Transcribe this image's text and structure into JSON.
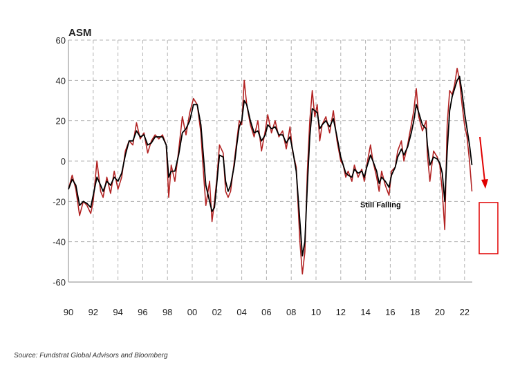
{
  "chart_data": {
    "type": "line",
    "title": "ASM",
    "xlabel": "",
    "ylabel": "",
    "x_tick_labels": [
      "90",
      "92",
      "94",
      "96",
      "98",
      "00",
      "02",
      "04",
      "06",
      "08",
      "10",
      "12",
      "14",
      "16",
      "18",
      "20",
      "22"
    ],
    "y_tick_labels": [
      "60",
      "40",
      "20",
      "0",
      "-20",
      "-40",
      "-60"
    ],
    "xlim": [
      1990,
      2022.9
    ],
    "ylim": [
      -60,
      60
    ],
    "grid": true,
    "annotation": "Still Falling",
    "series": [
      {
        "color": "#b22222",
        "points": [
          [
            1990.0,
            -14
          ],
          [
            1990.3,
            -7
          ],
          [
            1990.6,
            -14
          ],
          [
            1990.9,
            -27
          ],
          [
            1991.2,
            -20
          ],
          [
            1991.5,
            -22
          ],
          [
            1991.8,
            -26
          ],
          [
            1992.0,
            -20
          ],
          [
            1992.3,
            0
          ],
          [
            1992.6,
            -15
          ],
          [
            1992.8,
            -18
          ],
          [
            1993.1,
            -8
          ],
          [
            1993.4,
            -16
          ],
          [
            1993.7,
            -5
          ],
          [
            1994.0,
            -14
          ],
          [
            1994.3,
            -8
          ],
          [
            1994.6,
            5
          ],
          [
            1994.9,
            10
          ],
          [
            1995.2,
            8
          ],
          [
            1995.5,
            19
          ],
          [
            1995.8,
            11
          ],
          [
            1996.1,
            14
          ],
          [
            1996.4,
            4
          ],
          [
            1996.7,
            10
          ],
          [
            1997.0,
            13
          ],
          [
            1997.3,
            11
          ],
          [
            1997.6,
            13
          ],
          [
            1997.9,
            8
          ],
          [
            1998.1,
            -18
          ],
          [
            1998.3,
            -2
          ],
          [
            1998.6,
            -10
          ],
          [
            1998.9,
            5
          ],
          [
            1999.2,
            22
          ],
          [
            1999.5,
            13
          ],
          [
            1999.8,
            24
          ],
          [
            2000.1,
            31
          ],
          [
            2000.4,
            28
          ],
          [
            2000.7,
            14
          ],
          [
            2000.9,
            -5
          ],
          [
            2001.1,
            -22
          ],
          [
            2001.4,
            -10
          ],
          [
            2001.6,
            -30
          ],
          [
            2001.8,
            -20
          ],
          [
            2002.0,
            -8
          ],
          [
            2002.2,
            8
          ],
          [
            2002.5,
            4
          ],
          [
            2002.7,
            -15
          ],
          [
            2002.9,
            -18
          ],
          [
            2003.1,
            -15
          ],
          [
            2003.4,
            0
          ],
          [
            2003.6,
            10
          ],
          [
            2003.8,
            20
          ],
          [
            2004.0,
            18
          ],
          [
            2004.2,
            40
          ],
          [
            2004.4,
            28
          ],
          [
            2004.7,
            18
          ],
          [
            2005.0,
            12
          ],
          [
            2005.3,
            20
          ],
          [
            2005.6,
            5
          ],
          [
            2005.9,
            15
          ],
          [
            2006.1,
            23
          ],
          [
            2006.4,
            14
          ],
          [
            2006.7,
            20
          ],
          [
            2007.0,
            12
          ],
          [
            2007.3,
            15
          ],
          [
            2007.6,
            6
          ],
          [
            2007.9,
            17
          ],
          [
            2008.1,
            5
          ],
          [
            2008.4,
            -3
          ],
          [
            2008.7,
            -40
          ],
          [
            2008.9,
            -56
          ],
          [
            2009.1,
            -45
          ],
          [
            2009.3,
            -5
          ],
          [
            2009.5,
            20
          ],
          [
            2009.7,
            35
          ],
          [
            2009.9,
            22
          ],
          [
            2010.1,
            28
          ],
          [
            2010.3,
            10
          ],
          [
            2010.5,
            18
          ],
          [
            2010.8,
            22
          ],
          [
            2011.1,
            14
          ],
          [
            2011.4,
            25
          ],
          [
            2011.7,
            10
          ],
          [
            2012.0,
            0
          ],
          [
            2012.2,
            -2
          ],
          [
            2012.4,
            -8
          ],
          [
            2012.6,
            -5
          ],
          [
            2012.9,
            -10
          ],
          [
            2013.1,
            -2
          ],
          [
            2013.4,
            -8
          ],
          [
            2013.7,
            -4
          ],
          [
            2013.9,
            -10
          ],
          [
            2014.1,
            -2
          ],
          [
            2014.4,
            8
          ],
          [
            2014.6,
            0
          ],
          [
            2014.9,
            -8
          ],
          [
            2015.1,
            -15
          ],
          [
            2015.3,
            -5
          ],
          [
            2015.6,
            -12
          ],
          [
            2015.9,
            -17
          ],
          [
            2016.1,
            -5
          ],
          [
            2016.4,
            -3
          ],
          [
            2016.6,
            5
          ],
          [
            2016.9,
            10
          ],
          [
            2017.1,
            0
          ],
          [
            2017.4,
            8
          ],
          [
            2017.7,
            18
          ],
          [
            2017.9,
            25
          ],
          [
            2018.1,
            36
          ],
          [
            2018.3,
            22
          ],
          [
            2018.6,
            15
          ],
          [
            2018.9,
            20
          ],
          [
            2019.0,
            3
          ],
          [
            2019.2,
            -10
          ],
          [
            2019.5,
            5
          ],
          [
            2019.8,
            2
          ],
          [
            2020.0,
            -2
          ],
          [
            2020.2,
            -15
          ],
          [
            2020.4,
            -34
          ],
          [
            2020.6,
            18
          ],
          [
            2020.8,
            35
          ],
          [
            2021.0,
            33
          ],
          [
            2021.2,
            38
          ],
          [
            2021.4,
            46
          ],
          [
            2021.6,
            40
          ],
          [
            2021.8,
            28
          ],
          [
            2022.0,
            18
          ],
          [
            2022.2,
            12
          ],
          [
            2022.4,
            0
          ],
          [
            2022.6,
            -15
          ]
        ]
      },
      {
        "color": "#000000",
        "points": [
          [
            1990.0,
            -14
          ],
          [
            1990.3,
            -9
          ],
          [
            1990.6,
            -12
          ],
          [
            1990.9,
            -22
          ],
          [
            1991.2,
            -20
          ],
          [
            1991.5,
            -21
          ],
          [
            1991.8,
            -23
          ],
          [
            1992.0,
            -17
          ],
          [
            1992.3,
            -8
          ],
          [
            1992.6,
            -12
          ],
          [
            1992.8,
            -15
          ],
          [
            1993.1,
            -10
          ],
          [
            1993.4,
            -12
          ],
          [
            1993.7,
            -8
          ],
          [
            1994.0,
            -10
          ],
          [
            1994.3,
            -6
          ],
          [
            1994.6,
            3
          ],
          [
            1994.9,
            10
          ],
          [
            1995.2,
            10
          ],
          [
            1995.5,
            15
          ],
          [
            1995.8,
            12
          ],
          [
            1996.1,
            13
          ],
          [
            1996.4,
            8
          ],
          [
            1996.7,
            9
          ],
          [
            1997.0,
            12
          ],
          [
            1997.3,
            12
          ],
          [
            1997.6,
            12
          ],
          [
            1997.9,
            8
          ],
          [
            1998.1,
            -8
          ],
          [
            1998.3,
            -5
          ],
          [
            1998.6,
            -5
          ],
          [
            1998.9,
            3
          ],
          [
            1999.2,
            14
          ],
          [
            1999.5,
            16
          ],
          [
            1999.8,
            20
          ],
          [
            2000.1,
            28
          ],
          [
            2000.4,
            28
          ],
          [
            2000.7,
            18
          ],
          [
            2000.9,
            3
          ],
          [
            2001.1,
            -12
          ],
          [
            2001.4,
            -20
          ],
          [
            2001.6,
            -25
          ],
          [
            2001.8,
            -23
          ],
          [
            2002.0,
            -10
          ],
          [
            2002.2,
            3
          ],
          [
            2002.5,
            2
          ],
          [
            2002.7,
            -10
          ],
          [
            2002.9,
            -15
          ],
          [
            2003.1,
            -12
          ],
          [
            2003.4,
            -2
          ],
          [
            2003.6,
            8
          ],
          [
            2003.8,
            17
          ],
          [
            2004.0,
            20
          ],
          [
            2004.2,
            30
          ],
          [
            2004.4,
            28
          ],
          [
            2004.7,
            20
          ],
          [
            2005.0,
            14
          ],
          [
            2005.3,
            15
          ],
          [
            2005.6,
            10
          ],
          [
            2005.9,
            13
          ],
          [
            2006.1,
            18
          ],
          [
            2006.4,
            16
          ],
          [
            2006.7,
            17
          ],
          [
            2007.0,
            13
          ],
          [
            2007.3,
            13
          ],
          [
            2007.6,
            9
          ],
          [
            2007.9,
            12
          ],
          [
            2008.1,
            6
          ],
          [
            2008.4,
            -5
          ],
          [
            2008.7,
            -30
          ],
          [
            2008.9,
            -47
          ],
          [
            2009.1,
            -40
          ],
          [
            2009.3,
            -12
          ],
          [
            2009.5,
            12
          ],
          [
            2009.7,
            26
          ],
          [
            2009.9,
            25
          ],
          [
            2010.1,
            24
          ],
          [
            2010.3,
            16
          ],
          [
            2010.5,
            18
          ],
          [
            2010.8,
            20
          ],
          [
            2011.1,
            17
          ],
          [
            2011.4,
            21
          ],
          [
            2011.7,
            12
          ],
          [
            2012.0,
            2
          ],
          [
            2012.2,
            -2
          ],
          [
            2012.4,
            -6
          ],
          [
            2012.6,
            -7
          ],
          [
            2012.9,
            -8
          ],
          [
            2013.1,
            -4
          ],
          [
            2013.4,
            -6
          ],
          [
            2013.7,
            -5
          ],
          [
            2013.9,
            -8
          ],
          [
            2014.1,
            -3
          ],
          [
            2014.4,
            3
          ],
          [
            2014.6,
            0
          ],
          [
            2014.9,
            -5
          ],
          [
            2015.1,
            -11
          ],
          [
            2015.3,
            -8
          ],
          [
            2015.6,
            -10
          ],
          [
            2015.9,
            -13
          ],
          [
            2016.1,
            -7
          ],
          [
            2016.4,
            -3
          ],
          [
            2016.6,
            2
          ],
          [
            2016.9,
            6
          ],
          [
            2017.1,
            3
          ],
          [
            2017.4,
            7
          ],
          [
            2017.7,
            14
          ],
          [
            2017.9,
            20
          ],
          [
            2018.1,
            28
          ],
          [
            2018.3,
            24
          ],
          [
            2018.6,
            18
          ],
          [
            2018.9,
            16
          ],
          [
            2019.0,
            8
          ],
          [
            2019.2,
            -2
          ],
          [
            2019.5,
            2
          ],
          [
            2019.8,
            1
          ],
          [
            2020.0,
            -1
          ],
          [
            2020.2,
            -6
          ],
          [
            2020.4,
            -20
          ],
          [
            2020.6,
            5
          ],
          [
            2020.8,
            25
          ],
          [
            2021.0,
            32
          ],
          [
            2021.2,
            36
          ],
          [
            2021.4,
            40
          ],
          [
            2021.6,
            42
          ],
          [
            2021.8,
            34
          ],
          [
            2022.0,
            24
          ],
          [
            2022.2,
            16
          ],
          [
            2022.4,
            8
          ],
          [
            2022.6,
            -2
          ]
        ]
      }
    ]
  },
  "source_text": "Source:  Fundstrat Global Advisors and Bloomberg",
  "colors": {
    "grid": "#b0b0b0",
    "axis": "#888888",
    "highlight": "#e00000"
  }
}
